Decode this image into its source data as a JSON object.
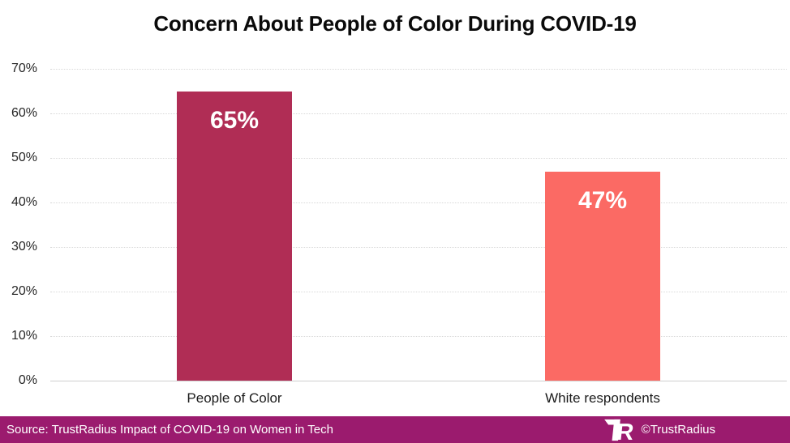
{
  "title": "Concern About People of Color During COVID-19",
  "chart_data": {
    "type": "bar",
    "title": "Concern About People of Color During COVID-19",
    "categories": [
      "People of Color",
      "White respondents"
    ],
    "values": [
      65,
      47
    ],
    "value_labels": [
      "65%",
      "47%"
    ],
    "bar_colors": [
      "#b02d55",
      "#fb6a64"
    ],
    "xlabel": "",
    "ylabel": "",
    "ylim": [
      0,
      70
    ],
    "yticks": [
      0,
      10,
      20,
      30,
      40,
      50,
      60,
      70
    ],
    "ytick_labels": [
      "0%",
      "10%",
      "20%",
      "30%",
      "40%",
      "50%",
      "60%",
      "70%"
    ],
    "grid": true,
    "legend": false,
    "value_label_position": "inside-top",
    "value_label_color": "#ffffff"
  },
  "footer": {
    "source_text": "Source: TrustRadius Impact of COVID-19 on Women in Tech",
    "brand_text": "©TrustRadius",
    "logo": "trustradius-tr-monogram",
    "bg_color": "#9b1b6e",
    "text_color": "#ffffff"
  },
  "colors": {
    "background": "#ffffff",
    "gridline": "#d9d9d9",
    "axis_line": "#cfcfcf",
    "title_text": "#0a0a0a",
    "tick_text": "#262626"
  }
}
